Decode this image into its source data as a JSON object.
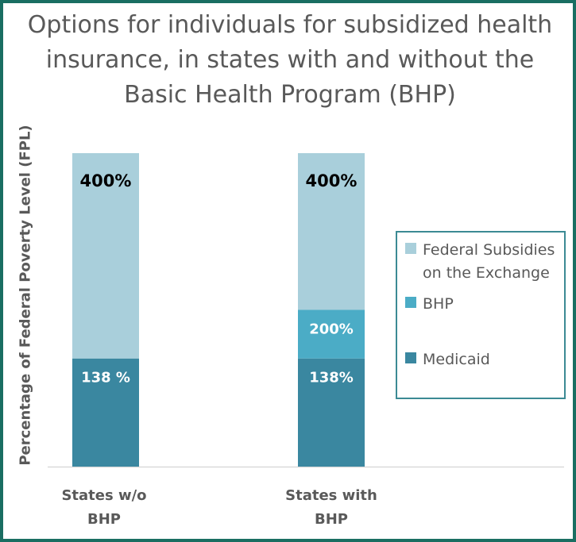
{
  "title_lines": [
    "Options for individuals for subsidized health",
    "insurance, in states with and without the",
    "Basic Health Program (BHP)"
  ],
  "chart_data": {
    "type": "bar",
    "stacked": true,
    "title": "Options for individuals for subsidized health insurance, in states with and without the Basic Health Program (BHP)",
    "ylabel": "Percentage of Federal Poverty Level (FPL)",
    "xlabel": "",
    "ylim": [
      0,
      400
    ],
    "grid": false,
    "legend_position": "right",
    "categories": [
      {
        "lines": [
          "States w/o",
          "BHP"
        ]
      },
      {
        "lines": [
          "States with",
          "BHP"
        ]
      }
    ],
    "series": [
      {
        "name": "Medicaid",
        "color": "#3a87a0",
        "values": [
          138,
          138
        ],
        "labels": [
          "138 %",
          "138%"
        ]
      },
      {
        "name": "BHP",
        "color": "#4bacc6",
        "values": [
          0,
          62
        ],
        "labels": [
          "",
          "200%"
        ]
      },
      {
        "name": "Federal Subsidies on the Exchange",
        "color": "#a9cfdb",
        "values": [
          262,
          200
        ],
        "labels": [
          "400%",
          "400%"
        ]
      }
    ],
    "legend": [
      {
        "lines": [
          "Federal Subsidies",
          "on the Exchange"
        ],
        "color": "#a9cfdb"
      },
      {
        "lines": [
          "BHP"
        ],
        "color": "#4bacc6"
      },
      {
        "lines": [
          "Medicaid"
        ],
        "color": "#3a87a0"
      }
    ]
  },
  "colors": {
    "frame": "#1a6e62",
    "text": "#595959",
    "axis": "#d9d9d9",
    "light_label": "#ffffff",
    "dark_label": "#000000"
  }
}
